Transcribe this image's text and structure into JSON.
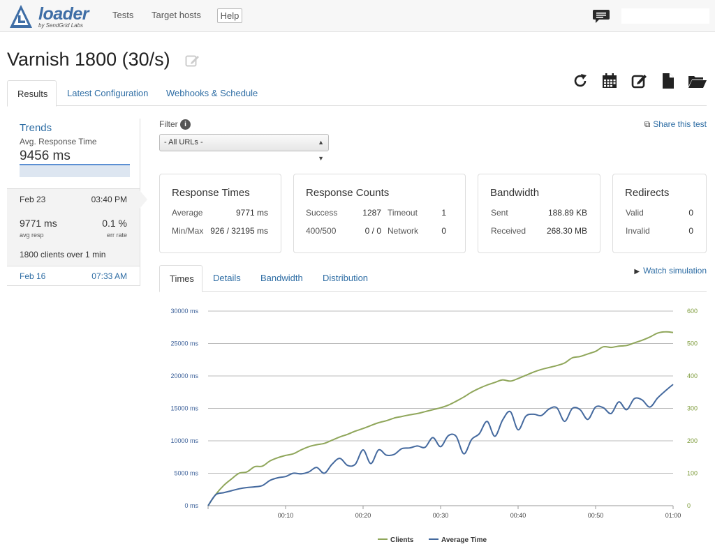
{
  "app": {
    "logo_text": "loader",
    "logo_subtext": "by SendGrid Labs",
    "nav": [
      "Tests",
      "Target hosts"
    ],
    "help_label": "Help",
    "search_value": ""
  },
  "test": {
    "title": "Varnish 1800 (30/s)"
  },
  "tabs": [
    "Results",
    "Latest Configuration",
    "Webhooks & Schedule"
  ],
  "sidebar": {
    "trends_title": "Trends",
    "trends_subtitle": "Avg. Response Time",
    "trends_value": "9456 ms",
    "current_run": {
      "date": "Feb 23",
      "time": "03:40 PM",
      "avg_resp": "9771 ms",
      "avg_resp_label": "avg resp",
      "err_rate": "0.1 %",
      "err_rate_label": "err rate",
      "clients_text": "1800 clients over 1 min"
    },
    "previous_run": {
      "date": "Feb 16",
      "time": "07:33 AM"
    }
  },
  "filter": {
    "label": "Filter",
    "selected": "- All URLs -"
  },
  "share_label": "Share this test",
  "panels": {
    "response_times": {
      "title": "Response Times",
      "average_label": "Average",
      "average_value": "9771 ms",
      "minmax_label": "Min/Max",
      "minmax_value": "926 / 32195 ms"
    },
    "response_counts": {
      "title": "Response Counts",
      "success_label": "Success",
      "success_value": "1287",
      "timeout_label": "Timeout",
      "timeout_value": "1",
      "codes_label": "400/500",
      "codes_value": "0 / 0",
      "network_label": "Network",
      "network_value": "0"
    },
    "bandwidth": {
      "title": "Bandwidth",
      "sent_label": "Sent",
      "sent_value": "188.89 KB",
      "received_label": "Received",
      "received_value": "268.30 MB"
    },
    "redirects": {
      "title": "Redirects",
      "valid_label": "Valid",
      "valid_value": "0",
      "invalid_label": "Invalid",
      "invalid_value": "0"
    }
  },
  "chart_tabs": [
    "Times",
    "Details",
    "Bandwidth",
    "Distribution"
  ],
  "watch_label": "Watch simulation",
  "colors": {
    "link": "#2e6da4",
    "clients": "#8fa65a",
    "average_time": "#44699e"
  },
  "icons": {
    "chat": "chat-bubble-icon",
    "edit": "edit-icon",
    "toolbar": [
      "refresh-icon",
      "calendar-icon",
      "edit-icon",
      "file-icon",
      "folder-open-icon"
    ],
    "share": "share-icon",
    "info": "info-icon",
    "play": "play-icon"
  },
  "chart_data": {
    "type": "line",
    "x_ticks": [
      "00:10",
      "00:20",
      "00:30",
      "00:40",
      "00:50",
      "01:00"
    ],
    "xlim": [
      0,
      60
    ],
    "left_axis": {
      "ticks": [
        "0 ms",
        "5000 ms",
        "10000 ms",
        "15000 ms",
        "20000 ms",
        "25000 ms",
        "30000 ms"
      ],
      "ylim": [
        0,
        30000
      ]
    },
    "right_axis": {
      "ticks": [
        "0",
        "100",
        "200",
        "300",
        "400",
        "500",
        "600"
      ],
      "ylim": [
        0,
        600
      ]
    },
    "grid": true,
    "legend_position": "bottom",
    "series": [
      {
        "name": "Clients",
        "axis": "right",
        "x": [
          0,
          1,
          2,
          3,
          4,
          5,
          6,
          7,
          8,
          9,
          10,
          11,
          12,
          13,
          14,
          15,
          16,
          17,
          18,
          19,
          20,
          21,
          22,
          23,
          24,
          25,
          26,
          27,
          28,
          29,
          30,
          31,
          32,
          33,
          34,
          35,
          36,
          37,
          38,
          39,
          40,
          41,
          42,
          43,
          44,
          45,
          46,
          47,
          48,
          49,
          50,
          51,
          52,
          53,
          54,
          55,
          56,
          57,
          58,
          59,
          60
        ],
        "values": [
          0,
          35,
          62,
          82,
          100,
          104,
          120,
          122,
          138,
          148,
          155,
          160,
          172,
          182,
          188,
          192,
          202,
          212,
          220,
          230,
          238,
          247,
          256,
          262,
          270,
          275,
          280,
          284,
          290,
          296,
          302,
          310,
          322,
          335,
          350,
          362,
          372,
          380,
          388,
          384,
          392,
          402,
          412,
          420,
          426,
          432,
          440,
          456,
          460,
          468,
          476,
          490,
          488,
          492,
          494,
          502,
          510,
          520,
          532,
          536,
          534
        ]
      },
      {
        "name": "Average Time",
        "axis": "left",
        "x": [
          0,
          1,
          2,
          3,
          4,
          5,
          6,
          7,
          8,
          9,
          10,
          11,
          12,
          13,
          14,
          15,
          16,
          17,
          18,
          19,
          20,
          21,
          22,
          23,
          24,
          25,
          26,
          27,
          28,
          29,
          30,
          31,
          32,
          33,
          34,
          35,
          36,
          37,
          38,
          39,
          40,
          41,
          42,
          43,
          44,
          45,
          46,
          47,
          48,
          49,
          50,
          51,
          52,
          53,
          54,
          55,
          56,
          57,
          58,
          59,
          60
        ],
        "values": [
          0,
          1700,
          2000,
          2300,
          2600,
          2800,
          2900,
          3100,
          3900,
          4300,
          4500,
          5000,
          4900,
          5200,
          5900,
          5000,
          6400,
          7300,
          6200,
          6400,
          8600,
          6500,
          8600,
          7800,
          7900,
          8800,
          8900,
          9200,
          9000,
          10500,
          9100,
          10800,
          10700,
          8000,
          10200,
          11100,
          13000,
          10700,
          13200,
          14500,
          11700,
          13800,
          14100,
          13900,
          14900,
          15100,
          13000,
          15000,
          14800,
          13300,
          15200,
          15100,
          14200,
          16000,
          14800,
          16500,
          16300,
          15200,
          16600,
          17700,
          18700
        ]
      }
    ]
  }
}
